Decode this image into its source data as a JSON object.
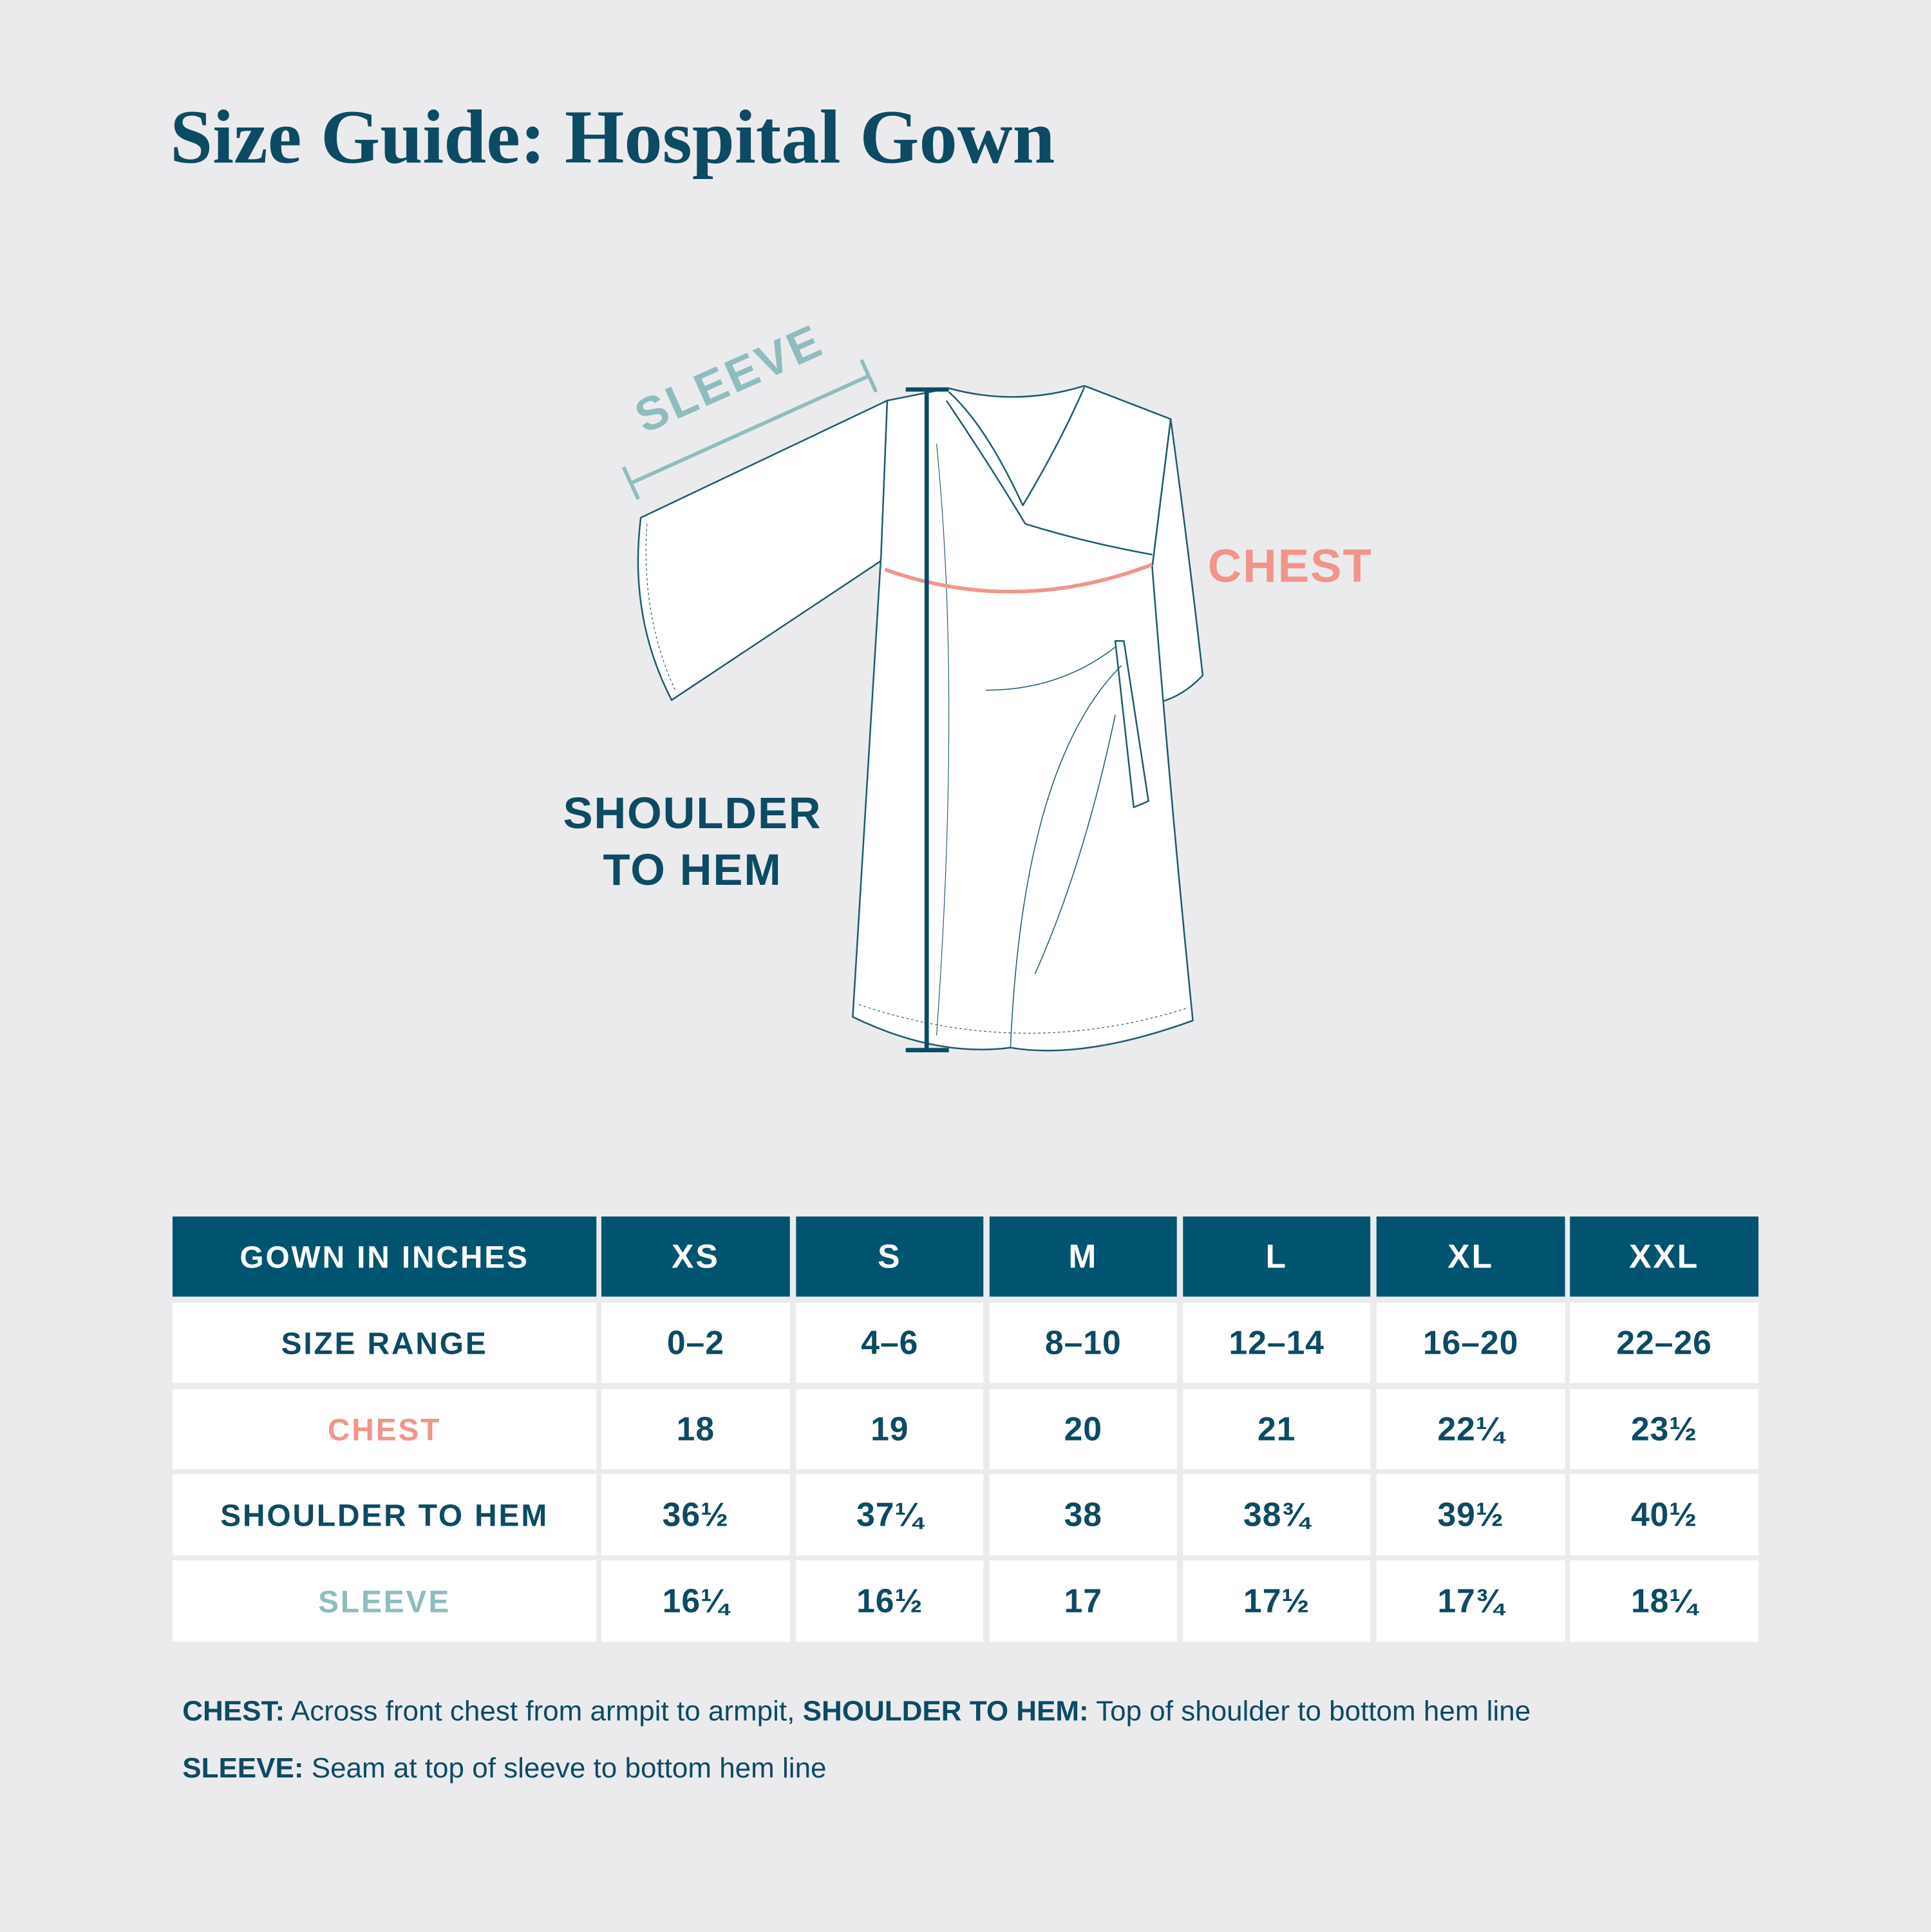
{
  "header": {
    "title": "Size Guide: Hospital Gown"
  },
  "diagram": {
    "sleeve_label": "SLEEVE",
    "chest_label": "CHEST",
    "shoulder_label": [
      "SHOULDER",
      "TO HEM"
    ]
  },
  "table": {
    "header": [
      "GOWN IN INCHES",
      "XS",
      "S",
      "M",
      "L",
      "XL",
      "XXL"
    ],
    "rows": [
      [
        "SIZE RANGE",
        "0–2",
        "4–6",
        "8–10",
        "12–14",
        "16–20",
        "22–26"
      ],
      [
        "CHEST",
        "18",
        "19",
        "20",
        "21",
        "22¼",
        "23½"
      ],
      [
        "SHOULDER TO HEM",
        "36½",
        "37¼",
        "38",
        "38¾",
        "39½",
        "40½"
      ],
      [
        "SLEEVE",
        "16¼",
        "16½",
        "17",
        "17½",
        "17¾",
        "18¼"
      ]
    ]
  },
  "notes": [
    [
      {
        "label": "CHEST:",
        "text": " Across front chest from armpit to armpit, "
      },
      {
        "label": "SHOULDER TO HEM:",
        "text": " Top of shoulder to bottom hem line"
      }
    ],
    [
      {
        "label": "SLEEVE:",
        "text": " Seam at top of sleeve to bottom hem line"
      }
    ]
  ]
}
